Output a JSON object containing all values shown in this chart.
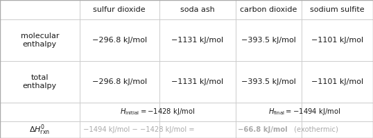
{
  "col_headers": [
    "",
    "sulfur dioxide",
    "soda ash",
    "carbon dioxide",
    "sodium sulfite"
  ],
  "row1_label": "molecular\nenthalpy",
  "row2_label": "total\nenthalpy",
  "mol_enthalpy": [
    "−296.8 kJ/mol",
    "−1131 kJ/mol",
    "−393.5 kJ/mol",
    "−1101 kJ/mol"
  ],
  "tot_enthalpy": [
    "−296.8 kJ/mol",
    "−1131 kJ/mol",
    "−393.5 kJ/mol",
    "−1101 kJ/mol"
  ],
  "bg_color": "#ffffff",
  "text_color": "#1a1a1a",
  "light_text_color": "#aaaaaa",
  "grid_color": "#cccccc",
  "cols": [
    0,
    0.213,
    0.4275,
    0.632,
    0.809,
    1.0
  ],
  "rows": [
    0,
    0.141,
    0.442,
    0.744,
    0.879,
    1.0
  ],
  "fs_header": 8.0,
  "fs_body": 8.0,
  "fs_small": 7.2
}
